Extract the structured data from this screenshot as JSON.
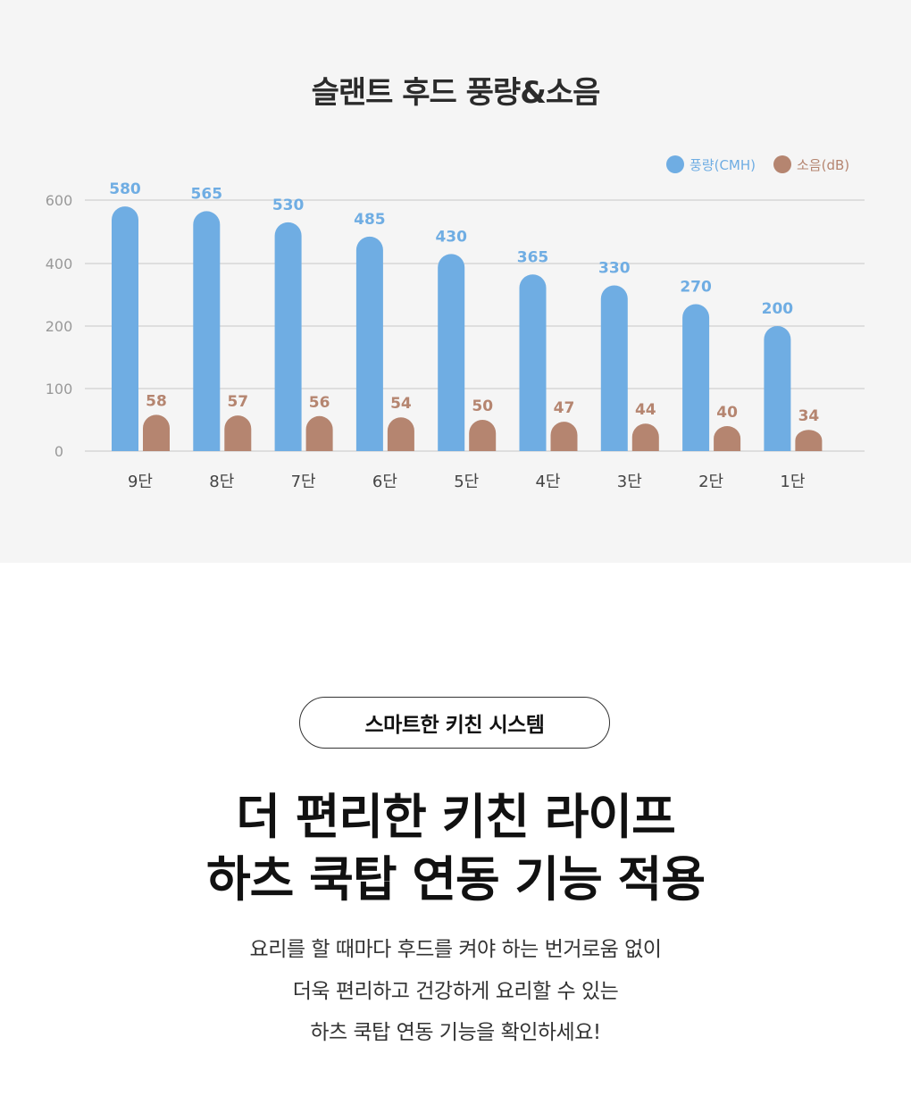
{
  "chart_section": {
    "title": "슬랜트 후드 풍량&소음"
  },
  "chart_data": {
    "type": "bar",
    "title": "슬랜트 후드 풍량&소음",
    "categories": [
      "9단",
      "8단",
      "7단",
      "6단",
      "5단",
      "4단",
      "3단",
      "2단",
      "1단"
    ],
    "series": [
      {
        "name": "풍량(CMH)",
        "values": [
          580,
          565,
          530,
          485,
          430,
          365,
          330,
          270,
          200
        ],
        "color": "#6fade3"
      },
      {
        "name": "소음(dB)",
        "values": [
          58,
          57,
          56,
          54,
          50,
          47,
          44,
          40,
          34
        ],
        "color": "#b58570"
      }
    ],
    "y_ticks": [
      600,
      400,
      200,
      100,
      0
    ],
    "ylim": [
      0,
      600
    ],
    "grid": true,
    "legend_position": "top-right",
    "xlabel": "",
    "ylabel": ""
  },
  "feature": {
    "badge": "스마트한 키친 시스템",
    "headline_line1": "더 편리한 키친 라이프",
    "headline_line2": "하츠 쿡탑 연동 기능 적용",
    "desc_line1": "요리를 할 때마다 후드를 켜야 하는 번거로움 없이",
    "desc_line2": "더욱 편리하고 건강하게 요리할 수 있는",
    "desc_line3": "하츠 쿡탑 연동 기능을 확인하세요!"
  }
}
